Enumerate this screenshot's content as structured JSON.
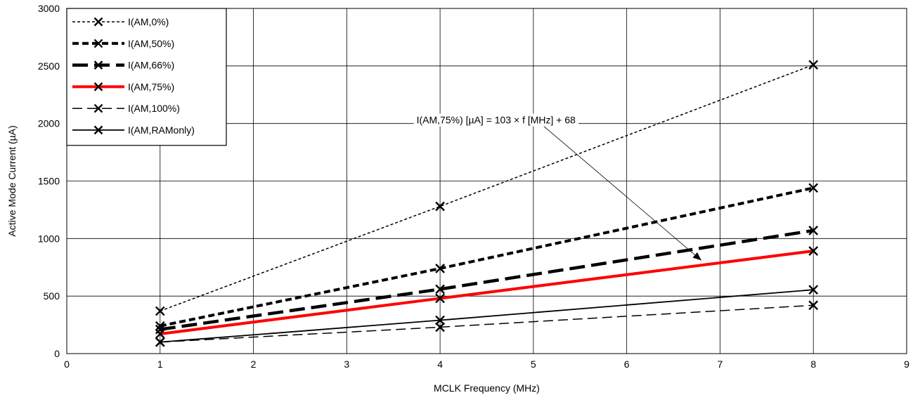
{
  "chart_data": {
    "type": "line",
    "title": "",
    "xlabel": "MCLK Frequency (MHz)",
    "ylabel": "Active Mode Current (µA)",
    "xlim": [
      0,
      9
    ],
    "ylim": [
      0,
      3000
    ],
    "xticks": [
      0,
      1,
      2,
      3,
      4,
      5,
      6,
      7,
      8,
      9
    ],
    "yticks": [
      0,
      500,
      1000,
      1500,
      2000,
      2500,
      3000
    ],
    "grid": true,
    "legend_position": "top-left",
    "series": [
      {
        "name": "I(AM,0%)",
        "x": [
          1,
          4,
          8
        ],
        "values": [
          370,
          1280,
          2510
        ],
        "color": "#000000",
        "style": "short-dash-thin"
      },
      {
        "name": "I(AM,50%)",
        "x": [
          1,
          4,
          8
        ],
        "values": [
          240,
          740,
          1440
        ],
        "color": "#000000",
        "style": "short-dash-thick"
      },
      {
        "name": "I(AM,66%)",
        "x": [
          1,
          4,
          8
        ],
        "values": [
          210,
          560,
          1070
        ],
        "color": "#000000",
        "style": "long-dash-thick"
      },
      {
        "name": "I(AM,75%)",
        "x": [
          1,
          4,
          8
        ],
        "values": [
          171,
          480,
          892
        ],
        "color": "#ff0000",
        "style": "solid-thick"
      },
      {
        "name": "I(AM,100%)",
        "x": [
          1,
          4,
          8
        ],
        "values": [
          100,
          230,
          420
        ],
        "color": "#000000",
        "style": "long-dash-thin"
      },
      {
        "name": "I(AM,RAMonly)",
        "x": [
          1,
          4,
          8
        ],
        "values": [
          100,
          290,
          555
        ],
        "color": "#000000",
        "style": "solid-thin"
      }
    ],
    "annotation": {
      "text": "I(AM,75%) [µA] = 103 × f [MHz] + 68",
      "x": 4.6,
      "y": 2000,
      "arrow_to_x": 6.8,
      "arrow_to_y": 810
    }
  }
}
